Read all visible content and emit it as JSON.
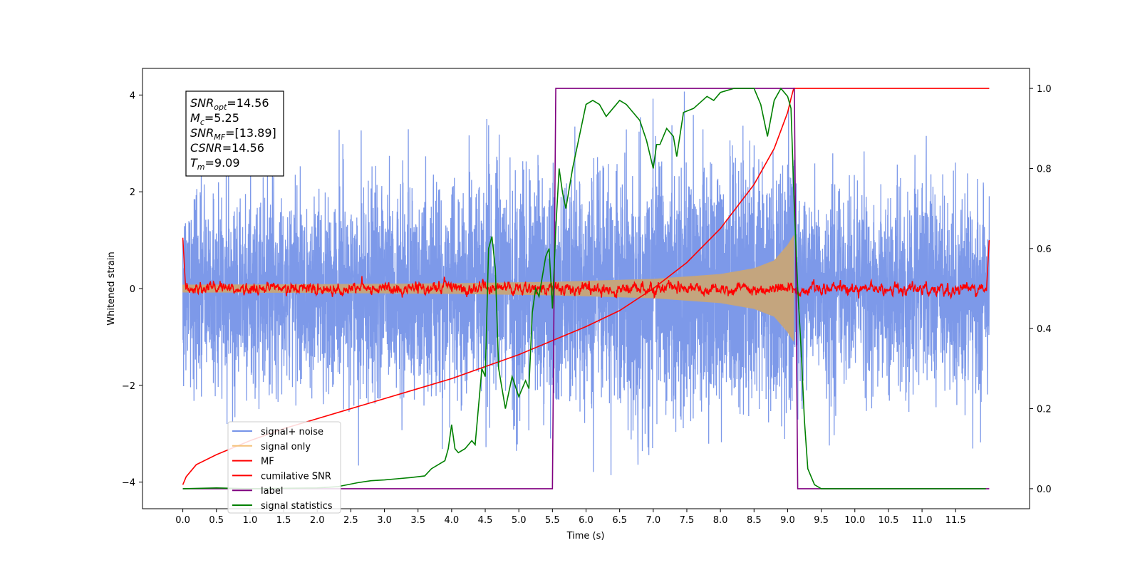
{
  "chart_data": {
    "type": "line",
    "title": "",
    "xlabel": "Time (s)",
    "ylabel": "Whitened strain",
    "xlim": [
      -0.6,
      12.6
    ],
    "ylim": [
      -4.55,
      4.55
    ],
    "y2lim": [
      -0.05,
      1.05
    ],
    "x_ticks": [
      0.0,
      0.5,
      1.0,
      1.5,
      2.0,
      2.5,
      3.0,
      3.5,
      4.0,
      4.5,
      5.0,
      5.5,
      6.0,
      6.5,
      7.0,
      7.5,
      8.0,
      8.5,
      9.0,
      9.5,
      10.0,
      10.5,
      11.0,
      11.5
    ],
    "x_tick_labels": [
      "0.0",
      "0.5",
      "1.0",
      "1.5",
      "2.0",
      "2.5",
      "3.0",
      "3.5",
      "4.0",
      "4.5",
      "5.0",
      "5.5",
      "6.0",
      "6.5",
      "7.0",
      "7.5",
      "8.0",
      "8.5",
      "9.0",
      "9.5",
      "10.0",
      "10.5",
      "11.0",
      "11.5"
    ],
    "y_ticks": [
      -4,
      -2,
      0,
      2,
      4
    ],
    "y_tick_labels": [
      "−4",
      "−2",
      "0",
      "2",
      "4"
    ],
    "y2_ticks": [
      0.0,
      0.2,
      0.4,
      0.6,
      0.8,
      1.0
    ],
    "y2_tick_labels": [
      "0.0",
      "0.2",
      "0.4",
      "0.6",
      "0.8",
      "1.0"
    ],
    "grid": false,
    "legend_position": "bottom-left",
    "annotation": [
      {
        "base": "SNR",
        "sub": "opt",
        "rest": "=14.56"
      },
      {
        "base": "M",
        "sub": "c",
        "rest": "=5.25"
      },
      {
        "base": "SNR",
        "sub": "MF",
        "rest": "=[13.89]"
      },
      {
        "base": "CSNR",
        "sub": "",
        "rest": "=14.56"
      },
      {
        "base": "T",
        "sub": "m",
        "rest": "=9.09"
      }
    ],
    "series": [
      {
        "name": "signal+ noise",
        "color": "#7694e8",
        "axis": "left",
        "kind": "noise",
        "sigma": 1.0,
        "x_range": [
          0.0,
          12.0
        ],
        "envelope": {
          "x": [
            0.0,
            9.09
          ],
          "amplitude": [
            0.08,
            1.1
          ]
        }
      },
      {
        "name": "signal only",
        "color": "#f5c27a",
        "axis": "left",
        "kind": "chirp",
        "x_range": [
          0.0,
          9.09
        ],
        "envelope": {
          "x": [
            0.0,
            2.0,
            4.0,
            5.5,
            7.0,
            8.0,
            8.5,
            8.8,
            9.0,
            9.09
          ],
          "amplitude": [
            0.08,
            0.09,
            0.11,
            0.14,
            0.2,
            0.3,
            0.42,
            0.58,
            0.9,
            1.1
          ]
        }
      },
      {
        "name": "MF",
        "color": "#ff0000",
        "axis": "left",
        "kind": "mf",
        "x_range": [
          0.0,
          12.0
        ],
        "edge_value": 1.0,
        "sigma": 0.045
      },
      {
        "name": "cumilative SNR",
        "color": "#ff0000",
        "axis": "right",
        "x": [
          0.0,
          0.05,
          0.2,
          0.5,
          1.0,
          1.5,
          2.0,
          2.5,
          3.0,
          3.5,
          4.0,
          4.5,
          5.0,
          5.5,
          6.0,
          6.5,
          7.0,
          7.5,
          8.0,
          8.5,
          8.8,
          9.0,
          9.05,
          9.09,
          12.0
        ],
        "y": [
          0.01,
          0.03,
          0.06,
          0.085,
          0.12,
          0.15,
          0.175,
          0.2,
          0.225,
          0.25,
          0.275,
          0.305,
          0.335,
          0.37,
          0.405,
          0.445,
          0.5,
          0.565,
          0.65,
          0.76,
          0.85,
          0.94,
          0.975,
          1.0,
          1.0
        ]
      },
      {
        "name": "label",
        "color": "#800080",
        "axis": "right",
        "x": [
          0.0,
          5.5,
          5.55,
          9.1,
          9.15,
          12.0
        ],
        "y": [
          0.0,
          0.0,
          1.0,
          1.0,
          0.0,
          0.0
        ]
      },
      {
        "name": "signal statistics",
        "color": "#008000",
        "axis": "right",
        "x": [
          0.0,
          0.5,
          1.0,
          1.5,
          2.0,
          2.3,
          2.6,
          2.8,
          3.0,
          3.2,
          3.4,
          3.6,
          3.7,
          3.9,
          3.95,
          4.0,
          4.05,
          4.1,
          4.2,
          4.3,
          4.35,
          4.45,
          4.5,
          4.55,
          4.6,
          4.65,
          4.7,
          4.75,
          4.8,
          4.85,
          4.9,
          5.0,
          5.1,
          5.15,
          5.2,
          5.25,
          5.3,
          5.4,
          5.45,
          5.5,
          5.55,
          5.6,
          5.65,
          5.7,
          5.8,
          5.9,
          6.0,
          6.1,
          6.2,
          6.3,
          6.5,
          6.6,
          6.8,
          6.9,
          7.0,
          7.05,
          7.1,
          7.2,
          7.3,
          7.35,
          7.45,
          7.6,
          7.8,
          7.9,
          8.0,
          8.2,
          8.5,
          8.6,
          8.7,
          8.8,
          8.9,
          9.0,
          9.05,
          9.1,
          9.15,
          9.2,
          9.25,
          9.3,
          9.4,
          9.5,
          11.0,
          11.95
        ],
        "y": [
          0.0,
          0.002,
          0.0,
          0.001,
          0.002,
          0.005,
          0.015,
          0.02,
          0.022,
          0.025,
          0.028,
          0.032,
          0.05,
          0.07,
          0.1,
          0.16,
          0.1,
          0.09,
          0.1,
          0.12,
          0.11,
          0.3,
          0.28,
          0.6,
          0.63,
          0.55,
          0.3,
          0.25,
          0.2,
          0.24,
          0.28,
          0.23,
          0.27,
          0.25,
          0.44,
          0.5,
          0.48,
          0.58,
          0.6,
          0.45,
          0.65,
          0.8,
          0.74,
          0.7,
          0.8,
          0.88,
          0.96,
          0.97,
          0.96,
          0.93,
          0.97,
          0.96,
          0.92,
          0.87,
          0.8,
          0.86,
          0.86,
          0.9,
          0.88,
          0.83,
          0.94,
          0.95,
          0.98,
          0.97,
          0.99,
          1.0,
          1.0,
          0.96,
          0.88,
          0.97,
          1.0,
          0.98,
          0.95,
          0.7,
          0.5,
          0.35,
          0.17,
          0.05,
          0.01,
          0.0,
          0.0,
          0.0
        ]
      }
    ]
  }
}
